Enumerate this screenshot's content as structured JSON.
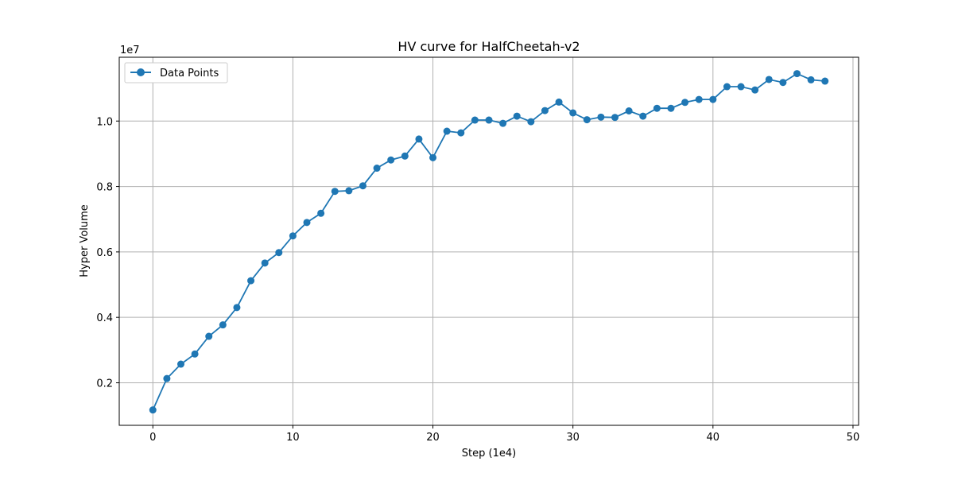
{
  "chart_data": {
    "type": "line",
    "title": "HV curve for HalfCheetah-v2",
    "xlabel": "Step (1e4)",
    "ylabel": "Hyper Volume",
    "y_offset_label": "1e7",
    "xlim": [
      -2.4,
      50.4
    ],
    "ylim": [
      0.07,
      1.195
    ],
    "x_ticks": [
      0,
      10,
      20,
      30,
      40,
      50
    ],
    "y_ticks": [
      0.2,
      0.4,
      0.6,
      0.8,
      1.0
    ],
    "x_tick_labels": [
      "0",
      "10",
      "20",
      "30",
      "40",
      "50"
    ],
    "y_tick_labels": [
      "0.2",
      "0.4",
      "0.6",
      "0.8",
      "1.0"
    ],
    "grid": true,
    "legend_position": "top-left",
    "series_color": "#1f77b4",
    "series": [
      {
        "name": "Data Points",
        "x": [
          0,
          1,
          2,
          3,
          4,
          5,
          6,
          7,
          8,
          9,
          10,
          11,
          12,
          13,
          14,
          15,
          16,
          17,
          18,
          19,
          20,
          21,
          22,
          23,
          24,
          25,
          26,
          27,
          28,
          29,
          30,
          31,
          32,
          33,
          34,
          35,
          36,
          37,
          38,
          39,
          40,
          41,
          42,
          43,
          44,
          45,
          46,
          47,
          48
        ],
        "y": [
          0.117,
          0.213,
          0.257,
          0.288,
          0.342,
          0.377,
          0.43,
          0.512,
          0.566,
          0.598,
          0.649,
          0.69,
          0.718,
          0.785,
          0.787,
          0.802,
          0.856,
          0.881,
          0.893,
          0.945,
          0.888,
          0.969,
          0.964,
          1.003,
          1.003,
          0.993,
          1.015,
          0.998,
          1.032,
          1.058,
          1.025,
          1.004,
          1.012,
          1.011,
          1.031,
          1.015,
          1.039,
          1.039,
          1.057,
          1.066,
          1.066,
          1.105,
          1.105,
          1.095,
          1.127,
          1.118,
          1.145,
          1.126,
          1.122
        ]
      }
    ]
  }
}
